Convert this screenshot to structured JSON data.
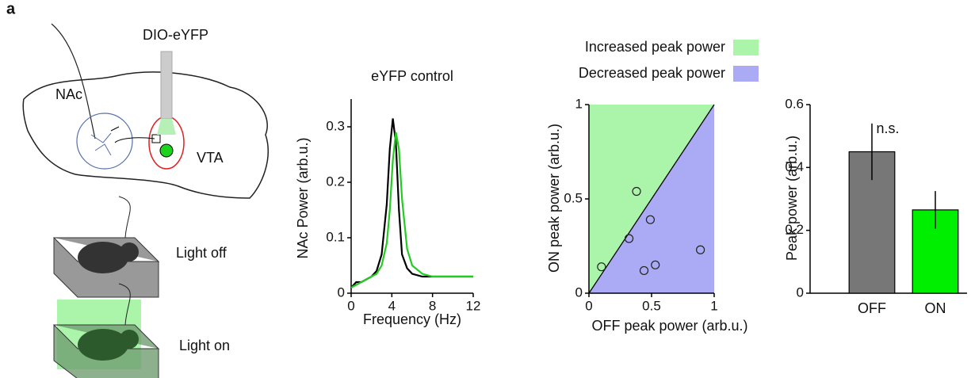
{
  "figure_labels": {
    "panel": "a",
    "virus": "DIO-eYFP",
    "nac": "NAc",
    "vta": "VTA",
    "light_off": "Light off",
    "light_on": "Light on"
  },
  "chart_data": [
    {
      "type": "line",
      "title": "eYFP control",
      "x_label": "Frequency (Hz)",
      "y_label": "NAc Power (arb.u.)",
      "x": [
        0,
        0.5,
        1,
        1.5,
        2,
        2.5,
        3,
        3.5,
        3.8,
        4.1,
        4.4,
        4.7,
        5,
        5.5,
        6,
        7,
        8,
        9,
        10,
        11,
        12
      ],
      "series": [
        {
          "color": "#000000",
          "values": [
            0.01,
            0.02,
            0.02,
            0.025,
            0.03,
            0.04,
            0.07,
            0.16,
            0.26,
            0.315,
            0.27,
            0.15,
            0.07,
            0.045,
            0.035,
            0.03,
            0.03,
            0.03,
            0.03,
            0.03,
            0.03
          ]
        },
        {
          "color": "#22cc22",
          "values": [
            0.01,
            0.015,
            0.02,
            0.025,
            0.03,
            0.035,
            0.05,
            0.09,
            0.15,
            0.24,
            0.29,
            0.26,
            0.17,
            0.08,
            0.05,
            0.035,
            0.03,
            0.03,
            0.03,
            0.03,
            0.03
          ]
        }
      ],
      "xlim": [
        0,
        12
      ],
      "xticks": [
        0,
        4,
        8,
        12
      ],
      "ylim": [
        0,
        0.35
      ],
      "yticks": [
        0,
        0.1,
        0.2,
        0.3
      ]
    },
    {
      "type": "scatter",
      "x_label": "OFF peak power (arb.u.)",
      "y_label": "ON peak power (arb.u.)",
      "regions": [
        {
          "name": "Increased peak power",
          "color": "#aaf5aa"
        },
        {
          "name": "Decreased peak power",
          "color": "#aaaaf5"
        }
      ],
      "x": [
        0.1,
        0.32,
        0.38,
        0.49,
        0.44,
        0.53,
        0.89
      ],
      "values": [
        0.14,
        0.29,
        0.54,
        0.39,
        0.12,
        0.15,
        0.23
      ],
      "xlim": [
        0,
        1
      ],
      "xticks": [
        0,
        0.5,
        1
      ],
      "ylim": [
        0,
        1
      ],
      "yticks": [
        0,
        0.5,
        1
      ]
    },
    {
      "type": "bar",
      "y_label": "Peak power (arb.u.)",
      "annotation": "n.s.",
      "categories": [
        "OFF",
        "ON"
      ],
      "values": [
        0.45,
        0.265
      ],
      "errors": [
        0.09,
        0.06
      ],
      "colors": [
        "#777777",
        "#00ee00"
      ],
      "ylim": [
        0,
        0.6
      ],
      "yticks": [
        0,
        0.2,
        0.4,
        0.6
      ]
    }
  ]
}
